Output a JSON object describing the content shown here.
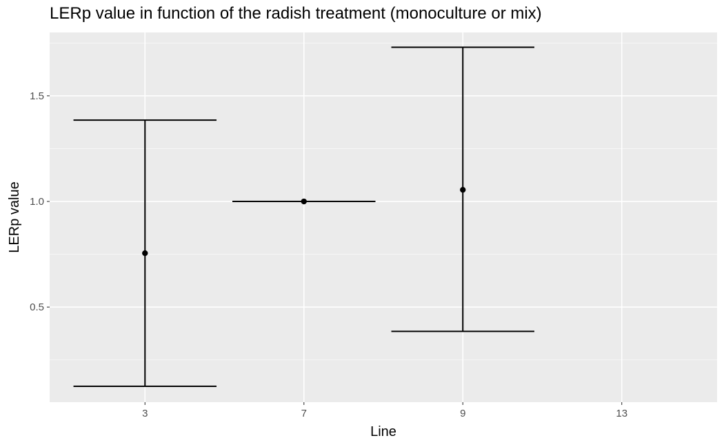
{
  "chart_data": {
    "type": "scatter",
    "title": "LERp value in function of the radish treatment (monoculture or mix)",
    "xlabel": "Line",
    "ylabel": "LERp value",
    "categories": [
      "3",
      "7",
      "9",
      "13"
    ],
    "points": [
      {
        "x": "3",
        "y": 0.755,
        "ymin": 0.125,
        "ymax": 1.385
      },
      {
        "x": "7",
        "y": 1.0,
        "ymin": 1.0,
        "ymax": 1.0
      },
      {
        "x": "9",
        "y": 1.055,
        "ymin": 0.385,
        "ymax": 1.73
      },
      {
        "x": "13",
        "y": null,
        "ymin": null,
        "ymax": null
      }
    ],
    "yticks": [
      0.5,
      1.0,
      1.5
    ],
    "ytick_labels": [
      "0.5",
      "1.0",
      "1.5"
    ],
    "ylim": [
      0.05,
      1.8
    ],
    "grid": true,
    "colors": {
      "panel": "#ebebeb",
      "grid": "#ffffff",
      "mark": "#000000",
      "tick_text": "#4d4d4d"
    }
  }
}
